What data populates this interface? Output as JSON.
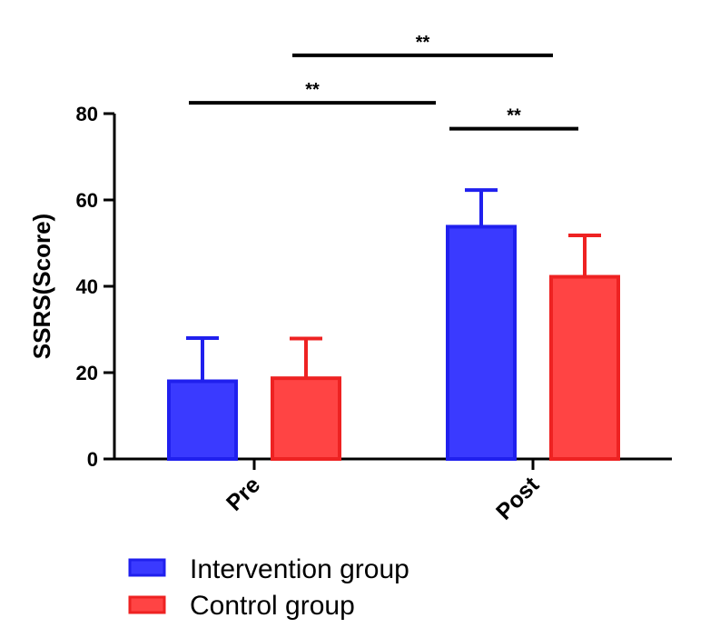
{
  "chart_data": {
    "type": "bar",
    "title": "",
    "xlabel": "",
    "ylabel": "SSRS(Score)",
    "ylim": [
      0,
      80
    ],
    "yticks": [
      0,
      20,
      40,
      60,
      80
    ],
    "categories": [
      "Pre",
      "Post"
    ],
    "series": [
      {
        "name": "Intervention group",
        "color": "#3a3aff",
        "border": "#2020ee",
        "values": [
          18,
          53.8
        ],
        "errors": [
          10,
          8.5
        ]
      },
      {
        "name": "Control group",
        "color": "#ff4444",
        "border": "#ee2222",
        "values": [
          18.7,
          42.2
        ],
        "errors": [
          9.2,
          9.6
        ]
      }
    ],
    "significance": [
      {
        "label": "**",
        "from": "Pre",
        "to": "Post / Intervention group",
        "y_value": 82.5
      },
      {
        "label": "**",
        "from": "Pre / Control group",
        "to": "Post / Control group",
        "y_value": 93.5
      },
      {
        "label": "**",
        "from": "Post / Intervention group",
        "to": "Post / Control group",
        "y_value": 76.5
      }
    ]
  }
}
